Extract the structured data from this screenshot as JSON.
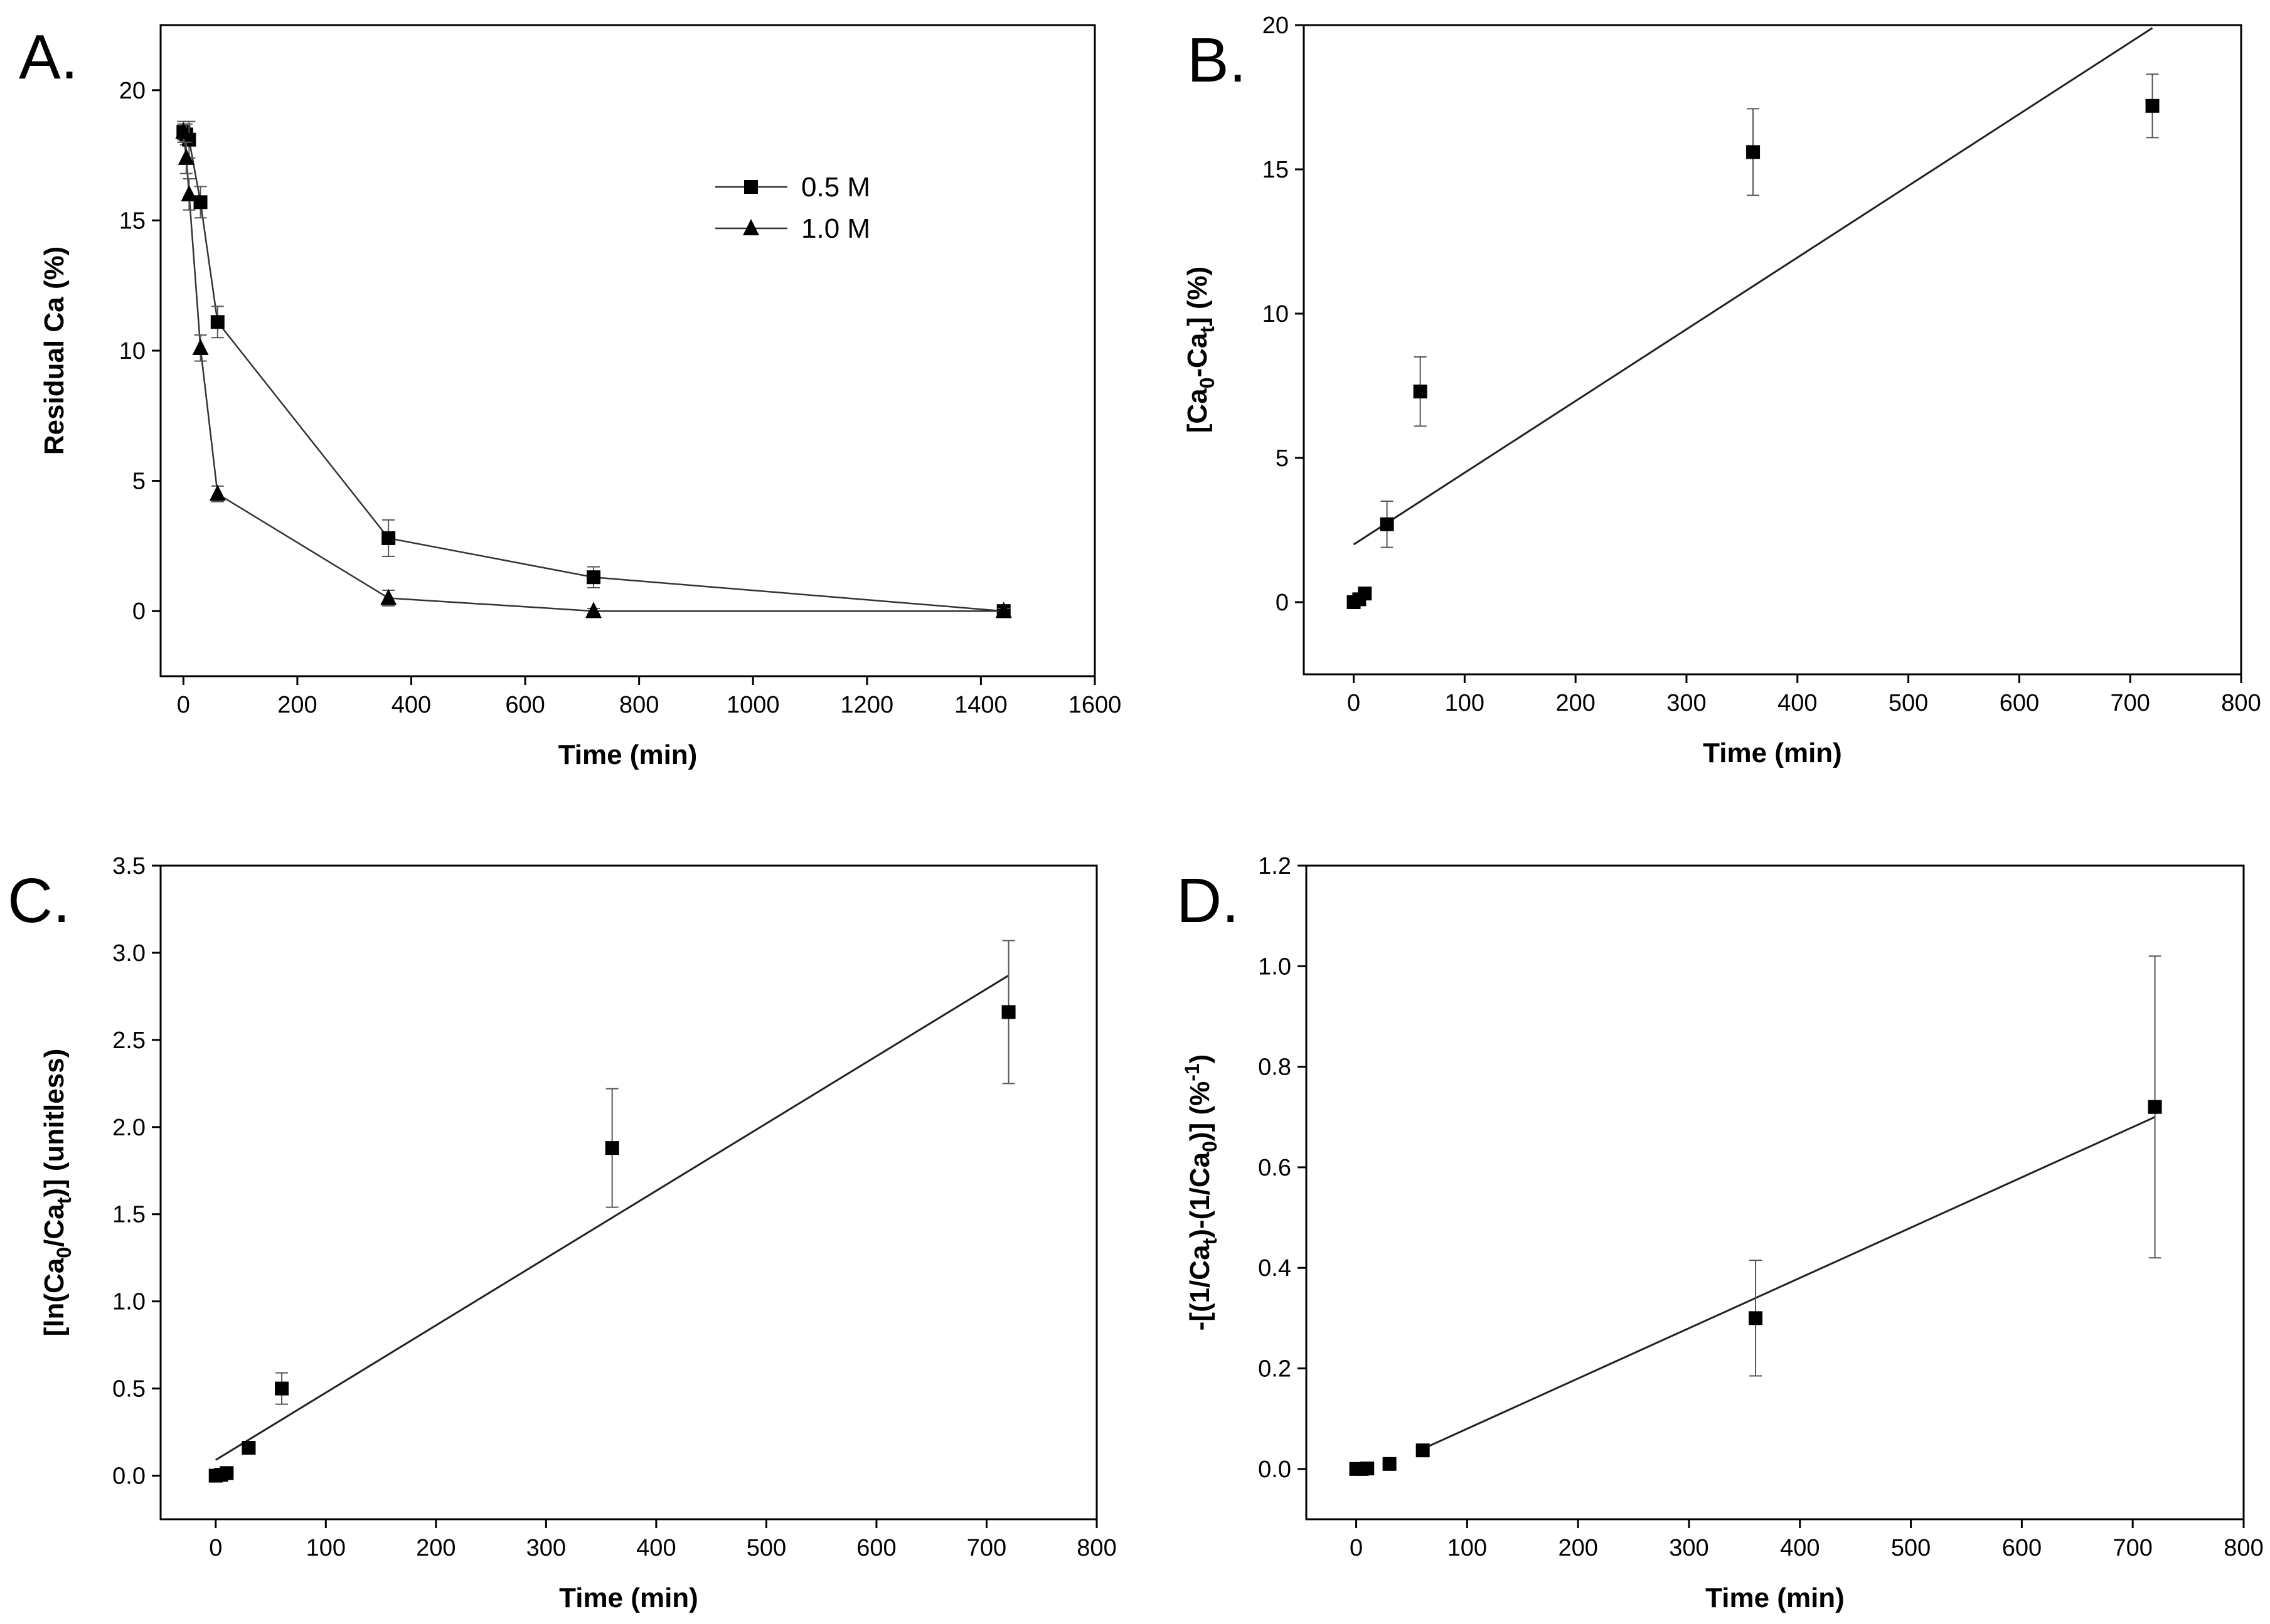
{
  "chart_data": [
    {
      "panel": "A.",
      "type": "line",
      "xlabel": "Time (min)",
      "ylabel": "Residual Ca (%)",
      "xlim": [
        -40,
        1600
      ],
      "ylim": [
        -2.5,
        22.5
      ],
      "xticks": [
        0,
        200,
        400,
        600,
        800,
        1000,
        1200,
        1400,
        1600
      ],
      "yticks": [
        0,
        5,
        10,
        15,
        20
      ],
      "legend": "top-right",
      "series": [
        {
          "name": "0.5 M",
          "marker": "square",
          "x": [
            0,
            5,
            10,
            30,
            60,
            360,
            720,
            1440
          ],
          "y": [
            18.4,
            18.3,
            18.1,
            15.7,
            11.1,
            2.8,
            1.3,
            0.0
          ],
          "err": [
            0.3,
            0.4,
            0.7,
            0.6,
            0.6,
            0.7,
            0.4,
            0.1
          ]
        },
        {
          "name": "1.0 M",
          "marker": "triangle",
          "x": [
            0,
            5,
            10,
            30,
            60,
            360,
            720,
            1440
          ],
          "y": [
            18.4,
            17.4,
            16.0,
            10.1,
            4.5,
            0.5,
            0.0,
            0.0
          ],
          "err": [
            0.4,
            0.6,
            0.6,
            0.5,
            0.3,
            0.3,
            0.1,
            0.1
          ]
        }
      ]
    },
    {
      "panel": "B.",
      "type": "scatter",
      "xlabel": "Time (min)",
      "ylabel_parts": [
        "[Ca",
        "0",
        "-Ca",
        "t",
        "] (%)"
      ],
      "xlim": [
        -45,
        800
      ],
      "ylim": [
        -2.5,
        20
      ],
      "xticks": [
        0,
        100,
        200,
        300,
        400,
        500,
        600,
        700,
        800
      ],
      "yticks": [
        0,
        5,
        10,
        15,
        20
      ],
      "points": {
        "x": [
          0,
          5,
          10,
          30,
          60,
          360,
          720
        ],
        "y": [
          0,
          0.1,
          0.3,
          2.7,
          7.3,
          15.6,
          17.2
        ],
        "err": [
          0.1,
          0.1,
          0.2,
          0.8,
          1.2,
          1.5,
          1.1
        ]
      },
      "fit": {
        "x": [
          0,
          720
        ],
        "y": [
          2.0,
          19.9
        ]
      }
    },
    {
      "panel": "C.",
      "type": "scatter",
      "xlabel": "Time (min)",
      "ylabel_parts": [
        "[ln(Ca",
        "0",
        "/Ca",
        "t",
        ")] (unitless)"
      ],
      "xlim": [
        -50,
        800
      ],
      "ylim": [
        -0.25,
        3.5
      ],
      "xticks": [
        0,
        100,
        200,
        300,
        400,
        500,
        600,
        700,
        800
      ],
      "yticks": [
        0.0,
        0.5,
        1.0,
        1.5,
        2.0,
        2.5,
        3.0,
        3.5
      ],
      "ytick_labels": [
        "0.0",
        "0.5",
        "1.0",
        "1.5",
        "2.0",
        "2.5",
        "3.0",
        "3.5"
      ],
      "points": {
        "x": [
          0,
          5,
          10,
          30,
          60,
          360,
          720
        ],
        "y": [
          0.0,
          0.005,
          0.015,
          0.16,
          0.5,
          1.88,
          2.66
        ],
        "err": [
          0.01,
          0.01,
          0.01,
          0.03,
          0.09,
          0.34,
          0.41
        ]
      },
      "fit": {
        "x": [
          0,
          720
        ],
        "y": [
          0.09,
          2.87
        ]
      }
    },
    {
      "panel": "D.",
      "type": "scatter",
      "xlabel": "Time (min)",
      "ylabel_parts": [
        "-[(1/Ca",
        "t",
        ")-(1/Ca",
        "0",
        ")] (%",
        "-1",
        ")"
      ],
      "xlim": [
        -45,
        800
      ],
      "ylim": [
        -0.1,
        1.2
      ],
      "xticks": [
        0,
        100,
        200,
        300,
        400,
        500,
        600,
        700,
        800
      ],
      "yticks": [
        0.0,
        0.2,
        0.4,
        0.6,
        0.8,
        1.0,
        1.2
      ],
      "ytick_labels": [
        "0.0",
        "0.2",
        "0.4",
        "0.6",
        "0.8",
        "1.0",
        "1.2"
      ],
      "points": {
        "x": [
          0,
          5,
          10,
          30,
          60,
          360,
          720
        ],
        "y": [
          0.0,
          0.0,
          0.001,
          0.01,
          0.037,
          0.3,
          0.72
        ],
        "err": [
          0.002,
          0.002,
          0.002,
          0.004,
          0.006,
          0.115,
          0.3
        ]
      },
      "fit": {
        "x": [
          60,
          720
        ],
        "y": [
          0.04,
          0.7
        ]
      }
    }
  ]
}
